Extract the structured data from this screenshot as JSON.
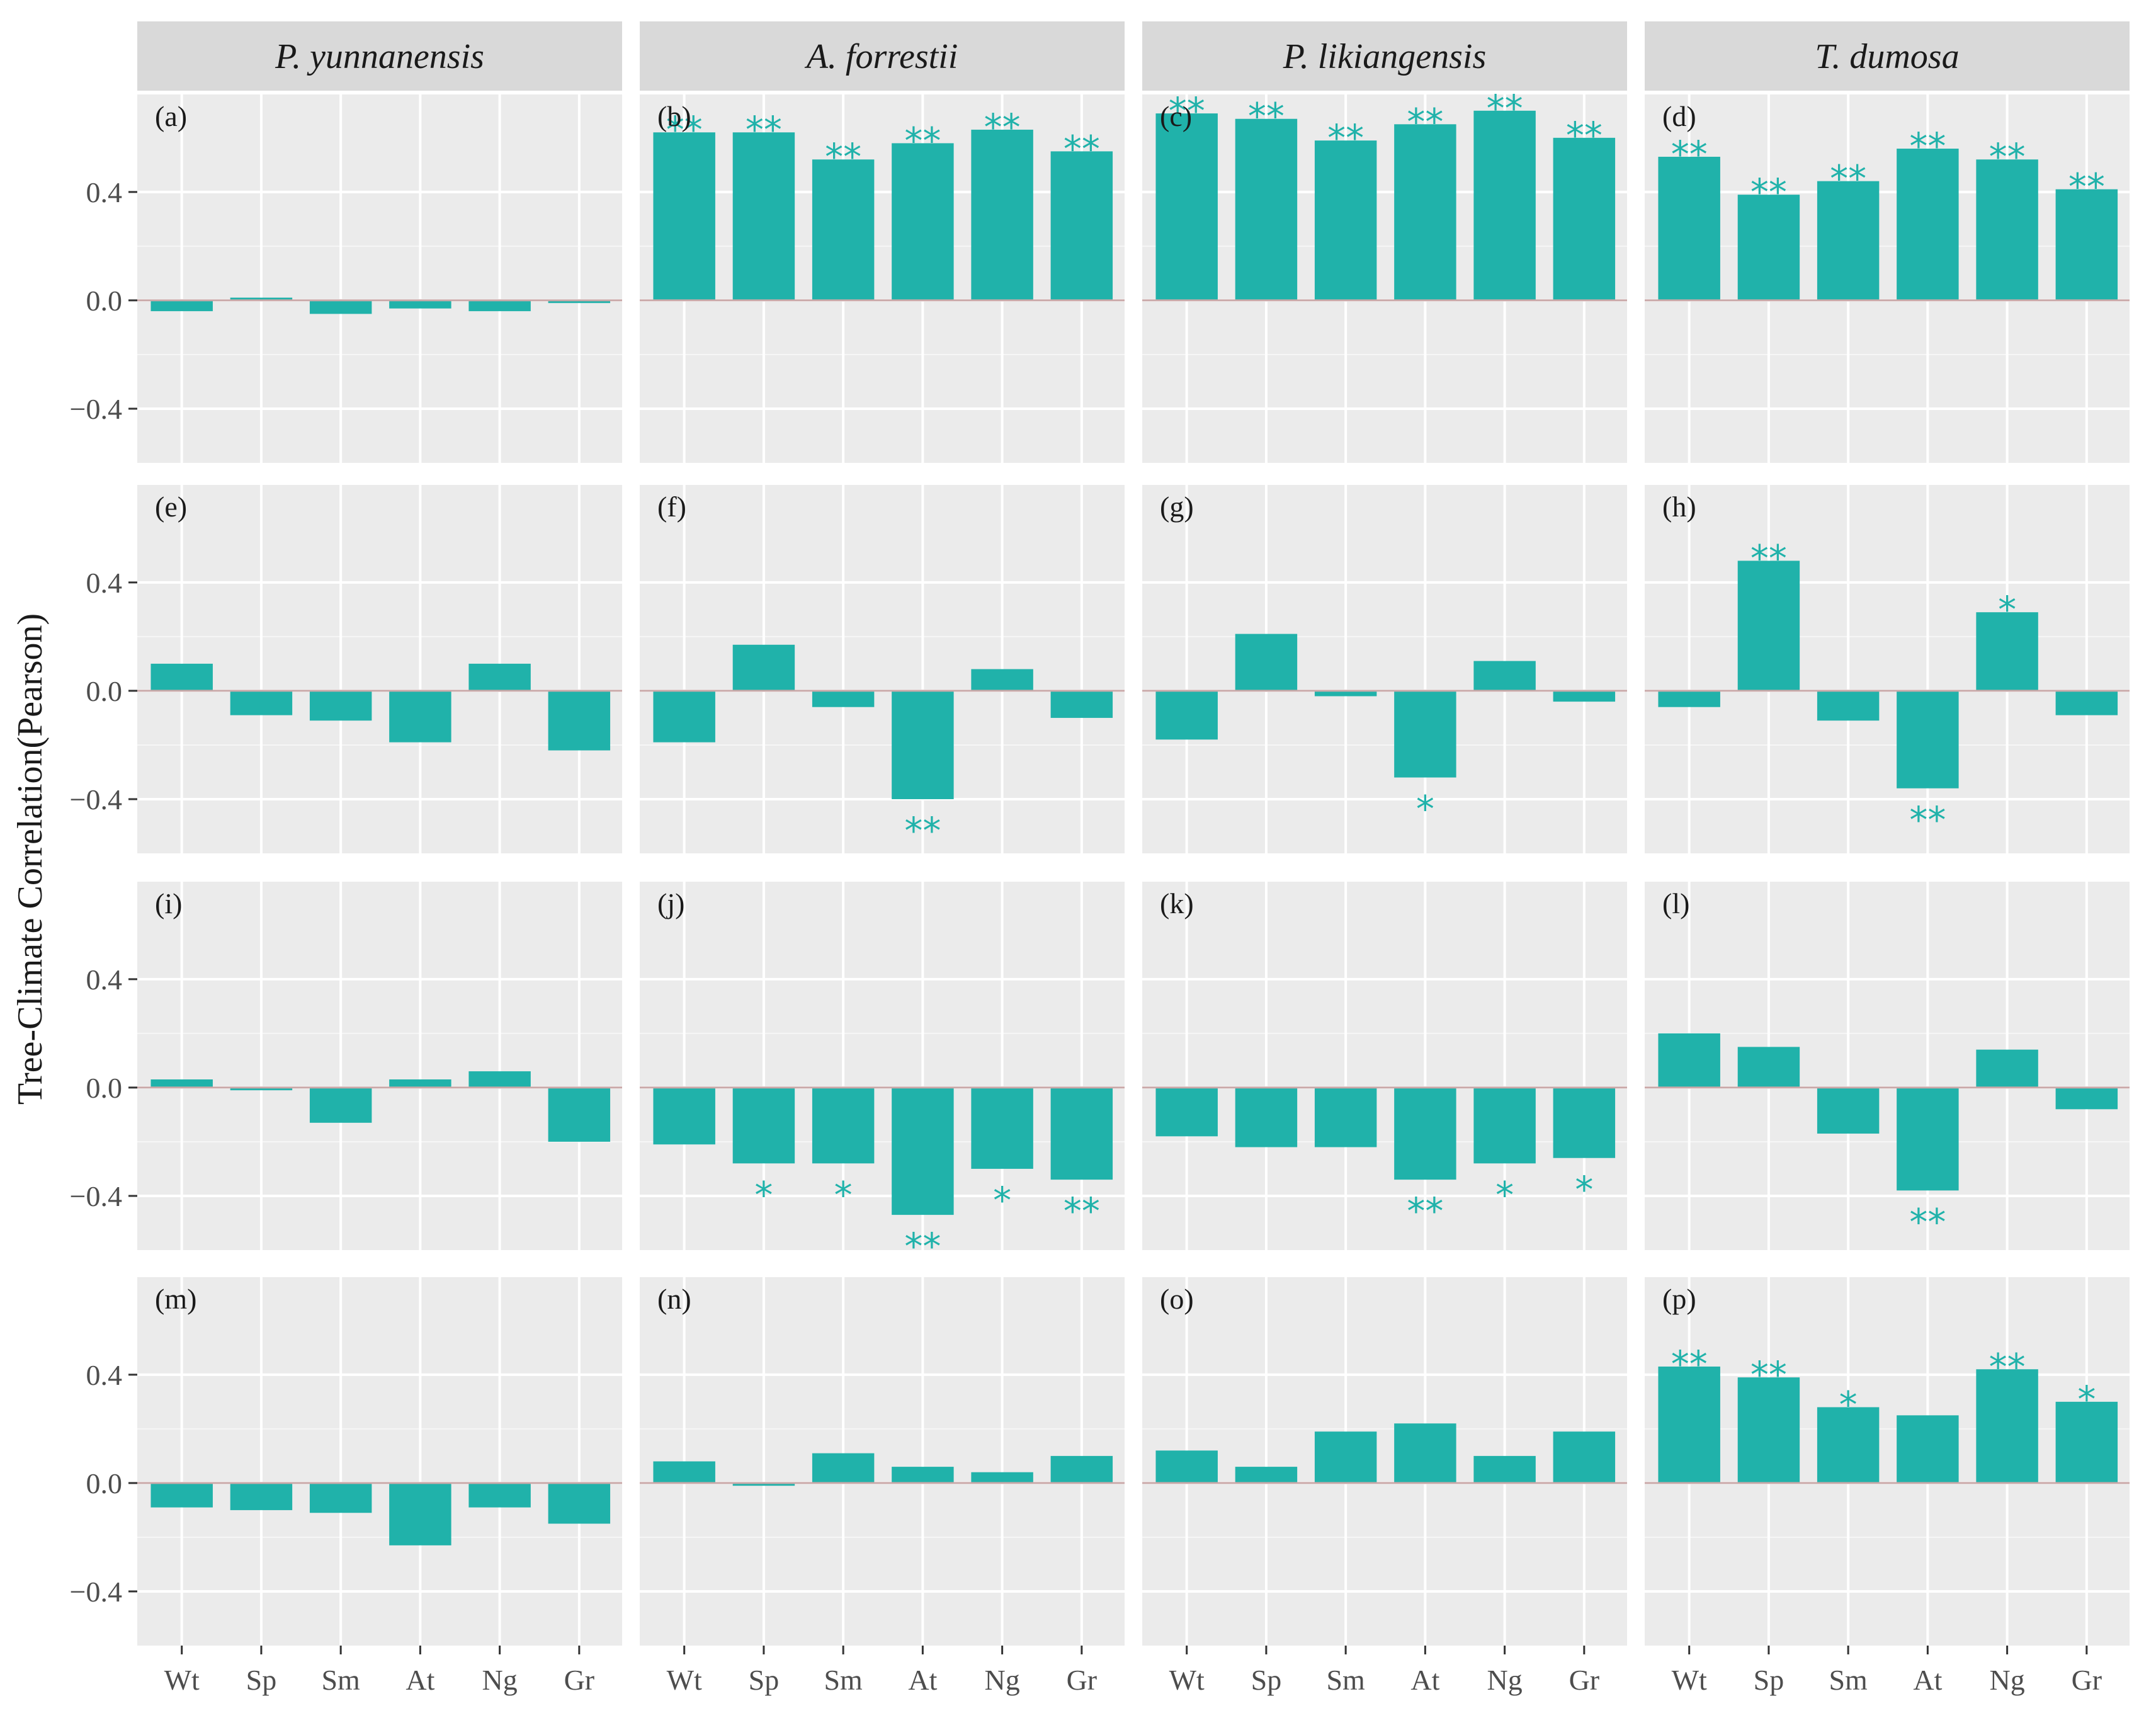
{
  "chart_data": {
    "type": "bar",
    "ylabel": "Tree-Climate Correlation(Pearson)",
    "xlabel": "",
    "categories": [
      "Wt",
      "Sp",
      "Sm",
      "At",
      "Ng",
      "Gr"
    ],
    "species": [
      "P. yunnanensis",
      "A. forrestii",
      "P. likiangensis",
      "T. dumosa"
    ],
    "yticks": [
      -0.4,
      0.0,
      0.4
    ],
    "ytick_labels": [
      "−0.4",
      "0.0",
      "0.4"
    ],
    "ylim": [
      -0.6,
      0.76
    ],
    "grid": true,
    "bar_color": "#20b2aa",
    "panel_background": "#ebebeb",
    "strip_background": "#d9d9d9",
    "panels": [
      {
        "label": "(a)",
        "row": 0,
        "col": 0,
        "values": [
          -0.04,
          0.01,
          -0.05,
          -0.03,
          -0.04,
          -0.01
        ],
        "sig": [
          "",
          "",
          "",
          "",
          "",
          ""
        ]
      },
      {
        "label": "(b)",
        "row": 0,
        "col": 1,
        "values": [
          0.62,
          0.62,
          0.52,
          0.58,
          0.63,
          0.55
        ],
        "sig": [
          "**",
          "**",
          "**",
          "**",
          "**",
          "**"
        ]
      },
      {
        "label": "(c)",
        "row": 0,
        "col": 2,
        "values": [
          0.69,
          0.67,
          0.59,
          0.65,
          0.7,
          0.6
        ],
        "sig": [
          "**",
          "**",
          "**",
          "**",
          "**",
          "**"
        ]
      },
      {
        "label": "(d)",
        "row": 0,
        "col": 3,
        "values": [
          0.53,
          0.39,
          0.44,
          0.56,
          0.52,
          0.41
        ],
        "sig": [
          "**",
          "**",
          "**",
          "**",
          "**",
          "**"
        ]
      },
      {
        "label": "(e)",
        "row": 1,
        "col": 0,
        "values": [
          0.1,
          -0.09,
          -0.11,
          -0.19,
          0.1,
          -0.22
        ],
        "sig": [
          "",
          "",
          "",
          "",
          "",
          ""
        ]
      },
      {
        "label": "(f)",
        "row": 1,
        "col": 1,
        "values": [
          -0.19,
          0.17,
          -0.06,
          -0.4,
          0.08,
          -0.1
        ],
        "sig": [
          "",
          "",
          "",
          "**",
          "",
          ""
        ]
      },
      {
        "label": "(g)",
        "row": 1,
        "col": 2,
        "values": [
          -0.18,
          0.21,
          -0.02,
          -0.32,
          0.11,
          -0.04
        ],
        "sig": [
          "",
          "",
          "",
          "*",
          "",
          ""
        ]
      },
      {
        "label": "(h)",
        "row": 1,
        "col": 3,
        "values": [
          -0.06,
          0.48,
          -0.11,
          -0.36,
          0.29,
          -0.09
        ],
        "sig": [
          "",
          "**",
          "",
          "**",
          "*",
          ""
        ]
      },
      {
        "label": "(i)",
        "row": 2,
        "col": 0,
        "values": [
          0.03,
          -0.01,
          -0.13,
          0.03,
          0.06,
          -0.2
        ],
        "sig": [
          "",
          "",
          "",
          "",
          "",
          ""
        ]
      },
      {
        "label": "(j)",
        "row": 2,
        "col": 1,
        "values": [
          -0.21,
          -0.28,
          -0.28,
          -0.47,
          -0.3,
          -0.34
        ],
        "sig": [
          "",
          "*",
          "*",
          "**",
          "*",
          "**"
        ]
      },
      {
        "label": "(k)",
        "row": 2,
        "col": 2,
        "values": [
          -0.18,
          -0.22,
          -0.22,
          -0.34,
          -0.28,
          -0.26
        ],
        "sig": [
          "",
          "",
          "",
          "**",
          "*",
          "*"
        ]
      },
      {
        "label": "(l)",
        "row": 2,
        "col": 3,
        "values": [
          0.2,
          0.15,
          -0.17,
          -0.38,
          0.14,
          -0.08
        ],
        "sig": [
          "",
          "",
          "",
          "**",
          "",
          ""
        ]
      },
      {
        "label": "(m)",
        "row": 3,
        "col": 0,
        "values": [
          -0.09,
          -0.1,
          -0.11,
          -0.23,
          -0.09,
          -0.15
        ],
        "sig": [
          "",
          "",
          "",
          "",
          "",
          ""
        ]
      },
      {
        "label": "(n)",
        "row": 3,
        "col": 1,
        "values": [
          0.08,
          -0.01,
          0.11,
          0.06,
          0.04,
          0.1
        ],
        "sig": [
          "",
          "",
          "",
          "",
          "",
          ""
        ]
      },
      {
        "label": "(o)",
        "row": 3,
        "col": 2,
        "values": [
          0.12,
          0.06,
          0.19,
          0.22,
          0.1,
          0.19
        ],
        "sig": [
          "",
          "",
          "",
          "",
          "",
          ""
        ]
      },
      {
        "label": "(p)",
        "row": 3,
        "col": 3,
        "values": [
          0.43,
          0.39,
          0.28,
          0.25,
          0.42,
          0.3
        ],
        "sig": [
          "**",
          "**",
          "*",
          "",
          "**",
          "*"
        ]
      }
    ]
  }
}
